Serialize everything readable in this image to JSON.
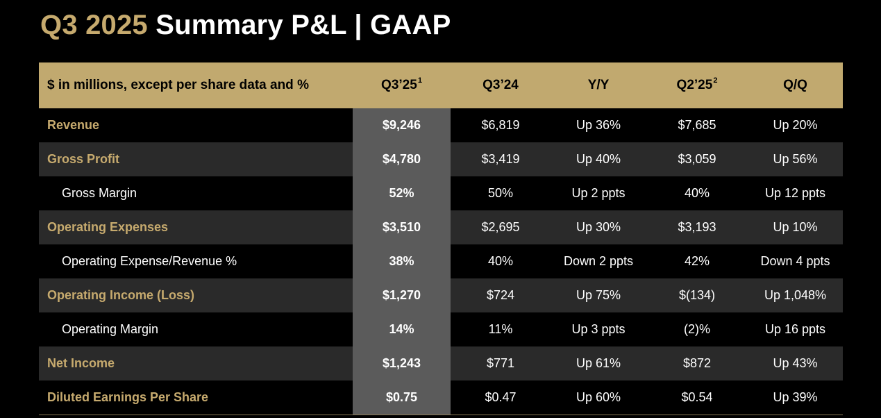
{
  "title": {
    "period": "Q3 2025",
    "rest": "Summary P&L  |  GAAP"
  },
  "header": {
    "label": "$ in millions, except per share data and %",
    "cols": [
      {
        "text": "Q3’25",
        "sup": "1"
      },
      {
        "text": "Q3’24",
        "sup": ""
      },
      {
        "text": "Y/Y",
        "sup": ""
      },
      {
        "text": "Q2’25",
        "sup": "2"
      },
      {
        "text": "Q/Q",
        "sup": ""
      }
    ]
  },
  "rows": [
    {
      "label": "Revenue",
      "major": true,
      "values": [
        "$9,246",
        "$6,819",
        "Up 36%",
        "$7,685",
        "Up 20%"
      ]
    },
    {
      "label": "Gross Profit",
      "major": true,
      "values": [
        "$4,780",
        "$3,419",
        "Up 40%",
        "$3,059",
        "Up 56%"
      ]
    },
    {
      "label": "Gross Margin",
      "major": false,
      "values": [
        "52%",
        "50%",
        "Up 2 ppts",
        "40%",
        "Up 12 ppts"
      ]
    },
    {
      "label": "Operating Expenses",
      "major": true,
      "values": [
        "$3,510",
        "$2,695",
        "Up 30%",
        "$3,193",
        "Up 10%"
      ]
    },
    {
      "label": "Operating Expense/Revenue %",
      "major": false,
      "values": [
        "38%",
        "40%",
        "Down 2 ppts",
        "42%",
        "Down 4 ppts"
      ]
    },
    {
      "label": "Operating Income (Loss)",
      "major": true,
      "values": [
        "$1,270",
        "$724",
        "Up 75%",
        "$(134)",
        "Up 1,048%"
      ]
    },
    {
      "label": "Operating Margin",
      "major": false,
      "values": [
        "14%",
        "11%",
        "Up 3 ppts",
        "(2)%",
        "Up 16 ppts"
      ]
    },
    {
      "label": "Net Income",
      "major": true,
      "values": [
        "$1,243",
        "$771",
        "Up 61%",
        "$872",
        "Up 43%"
      ]
    },
    {
      "label": "Diluted Earnings Per Share",
      "major": true,
      "values": [
        "$0.75",
        "$0.47",
        "Up 60%",
        "$0.54",
        "Up 39%"
      ]
    }
  ],
  "colors": {
    "gold": "#c6aa6e",
    "header_bg": "#c1a96f",
    "highlight_col": "#5b5b5b",
    "stripe": "#2a2a2a"
  }
}
